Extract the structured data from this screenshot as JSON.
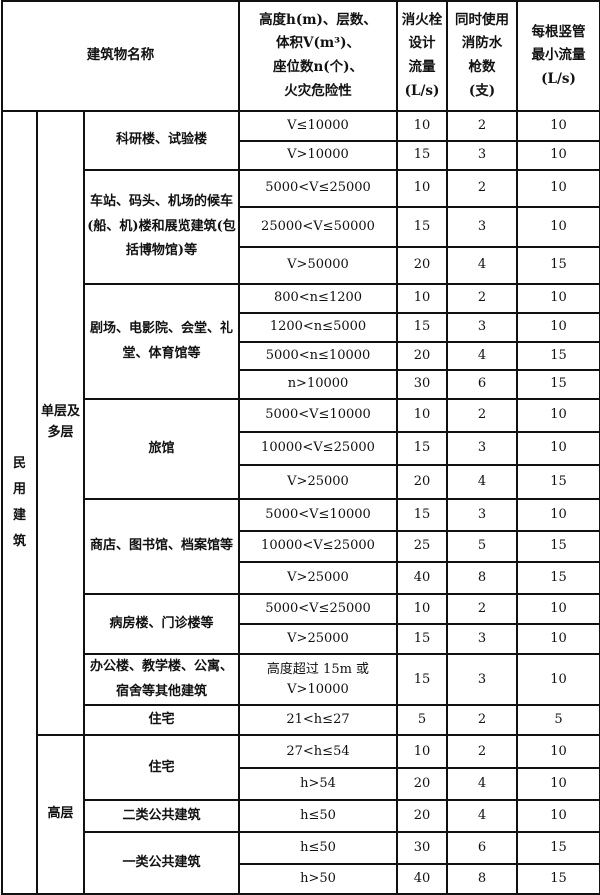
{
  "header": {
    "building_name": "建筑物名称",
    "condition": "高度h(m)、层数、\n体积V(m³)、\n座位数n(个)、\n火灾危险性",
    "design_flow": "消火栓\n设计\n流量\n(L/s)",
    "simultaneous_guns": "同时使用\n消防水\n枪数\n(支)",
    "min_riser_flow": "每根竖管\n最小流量\n(L/s)"
  },
  "category": "民用建筑",
  "subcategories": [
    {
      "name": "单层及多层",
      "buildings": [
        {
          "name": "科研楼、试验楼",
          "rows": [
            {
              "condition": "V≤10000",
              "flow": "10",
              "guns": "2",
              "riser": "10"
            },
            {
              "condition": "V>10000",
              "flow": "15",
              "guns": "3",
              "riser": "10"
            }
          ]
        },
        {
          "name": "车站、码头、机场的候车(船、机)楼和展览建筑(包括博物馆)等",
          "rows": [
            {
              "condition": "5000<V≤25000",
              "flow": "10",
              "guns": "2",
              "riser": "10"
            },
            {
              "condition": "25000<V≤50000",
              "flow": "15",
              "guns": "3",
              "riser": "10"
            },
            {
              "condition": "V>50000",
              "flow": "20",
              "guns": "4",
              "riser": "15"
            }
          ]
        },
        {
          "name": "剧场、电影院、会堂、礼堂、体育馆等",
          "rows": [
            {
              "condition": "800<n≤1200",
              "flow": "10",
              "guns": "2",
              "riser": "10"
            },
            {
              "condition": "1200<n≤5000",
              "flow": "15",
              "guns": "3",
              "riser": "10"
            },
            {
              "condition": "5000<n≤10000",
              "flow": "20",
              "guns": "4",
              "riser": "15"
            },
            {
              "condition": "n>10000",
              "flow": "30",
              "guns": "6",
              "riser": "15"
            }
          ]
        },
        {
          "name": "旅馆",
          "rows": [
            {
              "condition": "5000<V≤10000",
              "flow": "10",
              "guns": "2",
              "riser": "10"
            },
            {
              "condition": "10000<V≤25000",
              "flow": "15",
              "guns": "3",
              "riser": "10"
            },
            {
              "condition": "V>25000",
              "flow": "20",
              "guns": "4",
              "riser": "15"
            }
          ]
        },
        {
          "name": "商店、图书馆、档案馆等",
          "rows": [
            {
              "condition": "5000<V≤10000",
              "flow": "15",
              "guns": "3",
              "riser": "10"
            },
            {
              "condition": "10000<V≤25000",
              "flow": "25",
              "guns": "5",
              "riser": "15"
            },
            {
              "condition": "V>25000",
              "flow": "40",
              "guns": "8",
              "riser": "15"
            }
          ]
        },
        {
          "name": "病房楼、门诊楼等",
          "rows": [
            {
              "condition": "5000<V≤25000",
              "flow": "10",
              "guns": "2",
              "riser": "10"
            },
            {
              "condition": "V>25000",
              "flow": "15",
              "guns": "3",
              "riser": "10"
            }
          ]
        },
        {
          "name": "办公楼、教学楼、公寓、宿舍等其他建筑",
          "rows": [
            {
              "condition": "高度超过 15m 或 V>10000",
              "flow": "15",
              "guns": "3",
              "riser": "10"
            }
          ]
        },
        {
          "name": "住宅",
          "rows": [
            {
              "condition": "21<h≤27",
              "flow": "5",
              "guns": "2",
              "riser": "5"
            }
          ]
        }
      ]
    },
    {
      "name": "高层",
      "buildings": [
        {
          "name": "住宅",
          "rows": [
            {
              "condition": "27<h≤54",
              "flow": "10",
              "guns": "2",
              "riser": "10"
            },
            {
              "condition": "h>54",
              "flow": "20",
              "guns": "4",
              "riser": "10"
            }
          ]
        },
        {
          "name": "二类公共建筑",
          "rows": [
            {
              "condition": "h≤50",
              "flow": "20",
              "guns": "4",
              "riser": "10"
            }
          ]
        },
        {
          "name": "一类公共建筑",
          "rows": [
            {
              "condition": "h≤50",
              "flow": "30",
              "guns": "6",
              "riser": "15"
            },
            {
              "condition": "h>50",
              "flow": "40",
              "guns": "8",
              "riser": "15"
            }
          ]
        }
      ]
    }
  ]
}
